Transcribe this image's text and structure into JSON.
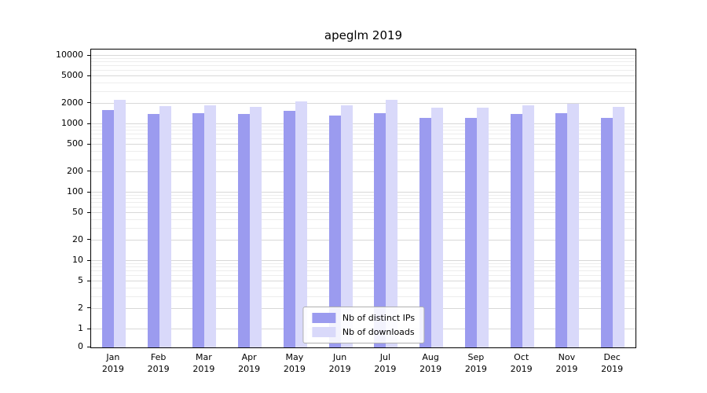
{
  "chart_data": {
    "type": "bar",
    "title": "apeglm 2019",
    "categories": [
      "Jan",
      "Feb",
      "Mar",
      "Apr",
      "May",
      "Jun",
      "Jul",
      "Aug",
      "Sep",
      "Oct",
      "Nov",
      "Dec"
    ],
    "x_year": "2019",
    "series": [
      {
        "name": "Nb of distinct IPs",
        "color": "#9b9bef",
        "values": [
          1600,
          1400,
          1450,
          1400,
          1550,
          1350,
          1450,
          1250,
          1250,
          1400,
          1450,
          1250
        ]
      },
      {
        "name": "Nb of downloads",
        "color": "#d9d9fa",
        "values": [
          2250,
          1850,
          1900,
          1800,
          2150,
          1900,
          2250,
          1750,
          1750,
          1900,
          2000,
          1800
        ]
      }
    ],
    "yticks": [
      0,
      1,
      2,
      5,
      10,
      20,
      50,
      100,
      200,
      500,
      1000,
      2000,
      5000,
      10000
    ],
    "ylim": [
      0,
      10000
    ],
    "yscale": "log",
    "grid": "horizontal",
    "legend_position": "bottom-center",
    "axis_color": "#000000",
    "major_grid_color": "#d8d8d8",
    "minor_grid_color": "#ededed"
  }
}
